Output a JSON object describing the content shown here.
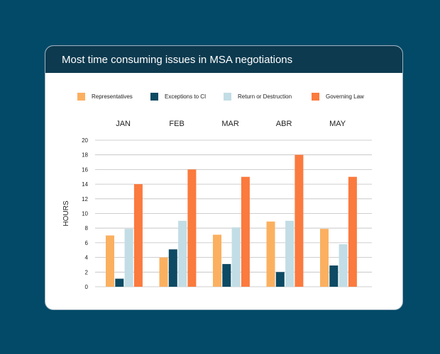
{
  "card": {
    "title": "Most time consuming issues in MSA negotiations"
  },
  "colors": {
    "background": "#034a68",
    "header": "#0d3a4f",
    "gridline": "#bfbfbf"
  },
  "chart_data": {
    "type": "bar",
    "title": "Most time consuming issues in MSA negotiations",
    "xlabel": "",
    "ylabel": "HOURS",
    "ylim": [
      0,
      20
    ],
    "yticks": [
      0,
      2,
      4,
      6,
      8,
      10,
      12,
      14,
      16,
      18,
      20
    ],
    "grid": true,
    "legend_position": "top",
    "category_labels_position": "top",
    "categories": [
      "JAN",
      "FEB",
      "MAR",
      "ABR",
      "MAY"
    ],
    "series": [
      {
        "name": "Representatives",
        "color": "#fbb060",
        "values": [
          7,
          4,
          7.1,
          8.9,
          7.9
        ]
      },
      {
        "name": "Exceptions to CI",
        "color": "#0d4a63",
        "values": [
          1.1,
          5.1,
          3.1,
          2,
          2.9
        ]
      },
      {
        "name": "Return or Destruction",
        "color": "#c2dde5",
        "values": [
          7.9,
          9,
          8.1,
          9,
          5.8
        ]
      },
      {
        "name": "Governing Law",
        "color": "#fb7a3e",
        "values": [
          14,
          16,
          15,
          18,
          15
        ]
      }
    ]
  }
}
